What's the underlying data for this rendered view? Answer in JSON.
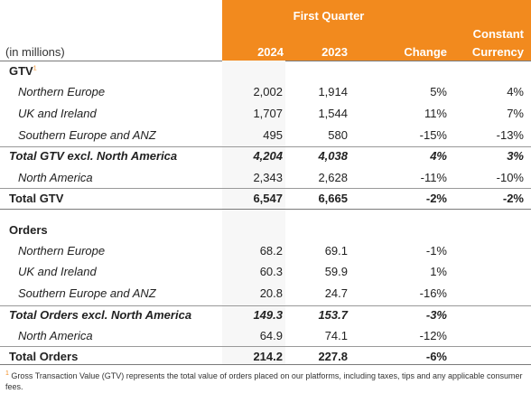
{
  "header": {
    "units_label": "(in millions)",
    "period_label": "First Quarter",
    "col_2024": "2024",
    "col_2023": "2023",
    "col_change": "Change",
    "col_constant_line1": "Constant",
    "col_constant_line2": "Currency",
    "accent_color": "#f28a1e"
  },
  "gtv_section": {
    "title": "GTV",
    "footnote_mark": "1",
    "rows": [
      {
        "label": "Northern Europe",
        "v2024": "2,002",
        "v2023": "1,914",
        "change": "5%",
        "constant": "4%"
      },
      {
        "label": "UK and Ireland",
        "v2024": "1,707",
        "v2023": "1,544",
        "change": "11%",
        "constant": "7%"
      },
      {
        "label": "Southern Europe and ANZ",
        "v2024": "495",
        "v2023": "580",
        "change": "-15%",
        "constant": "-13%"
      },
      {
        "label": "Total GTV excl. North America",
        "v2024": "4,204",
        "v2023": "4,038",
        "change": "4%",
        "constant": "3%"
      },
      {
        "label": "North America",
        "v2024": "2,343",
        "v2023": "2,628",
        "change": "-11%",
        "constant": "-10%"
      },
      {
        "label": "Total GTV",
        "v2024": "6,547",
        "v2023": "6,665",
        "change": "-2%",
        "constant": "-2%"
      }
    ]
  },
  "orders_section": {
    "title": "Orders",
    "rows": [
      {
        "label": "Northern Europe",
        "v2024": "68.2",
        "v2023": "69.1",
        "change": "-1%"
      },
      {
        "label": "UK and Ireland",
        "v2024": "60.3",
        "v2023": "59.9",
        "change": "1%"
      },
      {
        "label": "Southern Europe and ANZ",
        "v2024": "20.8",
        "v2023": "24.7",
        "change": "-16%"
      },
      {
        "label": "Total Orders excl. North America",
        "v2024": "149.3",
        "v2023": "153.7",
        "change": "-3%"
      },
      {
        "label": "North America",
        "v2024": "64.9",
        "v2023": "74.1",
        "change": "-12%"
      },
      {
        "label": "Total Orders",
        "v2024": "214.2",
        "v2023": "227.8",
        "change": "-6%"
      }
    ]
  },
  "footnote": {
    "mark": "1",
    "text": "Gross Transaction Value (GTV) represents the total value of orders placed on our platforms, including taxes, tips and any applicable consumer fees."
  }
}
